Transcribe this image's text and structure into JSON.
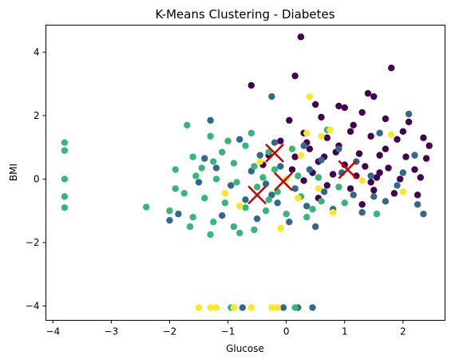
{
  "chart_data": {
    "type": "scatter",
    "title": "K-Means Clustering - Diabetes",
    "xlabel": "Glucose",
    "ylabel": "BMI",
    "xlim": [
      -4.12,
      2.72
    ],
    "ylim": [
      -4.45,
      4.85
    ],
    "xticks": [
      -4,
      -3,
      -2,
      -1,
      0,
      1,
      2
    ],
    "yticks": [
      -4,
      -2,
      0,
      2,
      4
    ],
    "grid": false,
    "legend": "none",
    "series": [
      {
        "color": "#440154",
        "marker": "circle",
        "points": [
          [
            0.25,
            4.48
          ],
          [
            -0.6,
            2.95
          ],
          [
            0.15,
            3.25
          ],
          [
            1.8,
            3.5
          ],
          [
            1.4,
            2.7
          ],
          [
            1.5,
            2.6
          ],
          [
            0.5,
            2.35
          ],
          [
            0.9,
            2.3
          ],
          [
            1.0,
            2.25
          ],
          [
            0.05,
            1.85
          ],
          [
            0.6,
            1.95
          ],
          [
            1.3,
            2.1
          ],
          [
            1.7,
            1.9
          ],
          [
            2.1,
            1.8
          ],
          [
            0.3,
            1.45
          ],
          [
            0.7,
            1.3
          ],
          [
            1.1,
            1.5
          ],
          [
            1.45,
            1.35
          ],
          [
            1.9,
            1.25
          ],
          [
            2.35,
            1.3
          ],
          [
            -0.1,
            1.2
          ],
          [
            0.4,
            0.95
          ],
          [
            0.85,
            0.85
          ],
          [
            1.25,
            0.8
          ],
          [
            1.6,
            0.75
          ],
          [
            2.05,
            0.7
          ],
          [
            2.4,
            0.65
          ],
          [
            -0.3,
            0.75
          ],
          [
            0.15,
            0.7
          ],
          [
            0.55,
            0.55
          ],
          [
            1.0,
            0.45
          ],
          [
            1.35,
            0.4
          ],
          [
            1.75,
            0.35
          ],
          [
            2.2,
            0.3
          ],
          [
            0.1,
            0.3
          ],
          [
            0.45,
            0.2
          ],
          [
            0.8,
            0.15
          ],
          [
            1.2,
            0.1
          ],
          [
            1.55,
            0.05
          ],
          [
            1.95,
            0.0
          ],
          [
            2.3,
            0.05
          ],
          [
            -0.4,
            0.45
          ],
          [
            0.3,
            -0.05
          ],
          [
            0.7,
            -0.2
          ],
          [
            1.1,
            -0.3
          ],
          [
            1.5,
            -0.35
          ],
          [
            1.85,
            -0.45
          ],
          [
            2.25,
            -0.5
          ],
          [
            1.3,
            -0.8
          ],
          [
            0.55,
            -0.6
          ],
          [
            1.7,
            0.95
          ],
          [
            2.0,
            1.5
          ],
          [
            0.9,
            1.05
          ],
          [
            1.15,
            1.7
          ],
          [
            0.35,
            1.15
          ],
          [
            1.6,
            0.2
          ],
          [
            2.45,
            1.05
          ],
          [
            0.65,
            0.7
          ],
          [
            1.45,
            -0.1
          ]
        ]
      },
      {
        "color": "#31688e",
        "marker": "circle",
        "points": [
          [
            -0.25,
            2.6
          ],
          [
            2.1,
            2.05
          ],
          [
            -1.3,
            1.85
          ],
          [
            -0.8,
            1.25
          ],
          [
            -0.2,
            1.15
          ],
          [
            0.3,
            1.05
          ],
          [
            0.9,
            0.95
          ],
          [
            1.6,
            1.45
          ],
          [
            2.2,
            0.75
          ],
          [
            -1.2,
            0.35
          ],
          [
            -0.6,
            0.25
          ],
          [
            -0.1,
            0.4
          ],
          [
            0.4,
            0.3
          ],
          [
            0.95,
            0.2
          ],
          [
            1.45,
            0.1
          ],
          [
            2.0,
            0.2
          ],
          [
            -1.5,
            -0.1
          ],
          [
            -0.95,
            -0.2
          ],
          [
            -0.35,
            -0.15
          ],
          [
            0.15,
            -0.3
          ],
          [
            0.65,
            -0.4
          ],
          [
            1.15,
            -0.5
          ],
          [
            1.7,
            -0.7
          ],
          [
            2.25,
            -0.8
          ],
          [
            2.35,
            -1.1
          ],
          [
            -0.7,
            -0.65
          ],
          [
            -0.15,
            -0.75
          ],
          [
            0.35,
            -0.85
          ],
          [
            0.8,
            -0.95
          ],
          [
            1.3,
            -1.05
          ],
          [
            -2.0,
            -1.3
          ],
          [
            -1.1,
            -1.15
          ],
          [
            -0.5,
            -1.25
          ],
          [
            0.05,
            -1.35
          ],
          [
            0.5,
            -1.5
          ],
          [
            -1.4,
            0.65
          ],
          [
            -0.45,
            0.75
          ],
          [
            1.2,
            0.55
          ],
          [
            1.9,
            -0.2
          ],
          [
            0.2,
            -4.05
          ],
          [
            0.45,
            -4.05
          ],
          [
            -0.05,
            -4.05
          ],
          [
            -0.75,
            -4.05
          ],
          [
            -1.85,
            -1.1
          ],
          [
            1.5,
            -0.55
          ],
          [
            -0.25,
            -0.5
          ],
          [
            0.6,
            0.6
          ]
        ]
      },
      {
        "color": "#35b779",
        "marker": "circle",
        "points": [
          [
            -3.8,
            1.15
          ],
          [
            -3.8,
            0.9
          ],
          [
            -3.8,
            0.0
          ],
          [
            -3.8,
            -0.55
          ],
          [
            -3.8,
            -0.9
          ],
          [
            -2.4,
            -0.88
          ],
          [
            -2.0,
            -1.0
          ],
          [
            -1.7,
            1.7
          ],
          [
            -1.3,
            1.35
          ],
          [
            -1.0,
            1.2
          ],
          [
            -0.7,
            1.05
          ],
          [
            -0.3,
            0.85
          ],
          [
            0.1,
            0.95
          ],
          [
            0.7,
            1.55
          ],
          [
            -1.6,
            0.7
          ],
          [
            -1.25,
            0.55
          ],
          [
            -0.9,
            0.5
          ],
          [
            -0.55,
            0.4
          ],
          [
            -0.2,
            0.3
          ],
          [
            0.2,
            0.1
          ],
          [
            0.55,
            0.05
          ],
          [
            -1.9,
            0.3
          ],
          [
            -1.55,
            0.1
          ],
          [
            -1.2,
            0.0
          ],
          [
            -0.85,
            -0.1
          ],
          [
            -0.5,
            -0.25
          ],
          [
            -0.15,
            -0.4
          ],
          [
            0.25,
            -0.55
          ],
          [
            0.6,
            -0.7
          ],
          [
            1.0,
            -0.75
          ],
          [
            1.55,
            -1.1
          ],
          [
            -1.75,
            -0.45
          ],
          [
            -1.4,
            -0.6
          ],
          [
            -1.05,
            -0.75
          ],
          [
            -0.7,
            -0.9
          ],
          [
            -0.35,
            -1.0
          ],
          [
            0.0,
            -1.1
          ],
          [
            0.35,
            -1.2
          ],
          [
            -1.6,
            -1.2
          ],
          [
            -1.25,
            -1.35
          ],
          [
            -0.9,
            -1.5
          ],
          [
            -0.55,
            -1.6
          ],
          [
            -1.3,
            -1.75
          ],
          [
            -0.8,
            -1.7
          ],
          [
            -1.65,
            -1.5
          ],
          [
            -0.6,
            1.45
          ],
          [
            -1.1,
            0.85
          ],
          [
            -0.4,
            0.05
          ],
          [
            0.9,
            -0.25
          ],
          [
            -0.95,
            -4.05
          ],
          [
            0.15,
            -4.05
          ],
          [
            -1.9,
            -0.3
          ],
          [
            -0.3,
            -0.65
          ],
          [
            -1.45,
            0.35
          ],
          [
            0.45,
            -0.95
          ]
        ]
      },
      {
        "color": "#fde725",
        "marker": "circle",
        "points": [
          [
            0.4,
            2.6
          ],
          [
            0.75,
            1.55
          ],
          [
            0.6,
            1.35
          ],
          [
            0.35,
            1.45
          ],
          [
            1.8,
            1.4
          ],
          [
            -0.45,
            0.55
          ],
          [
            0.25,
            0.75
          ],
          [
            0.0,
            0.0
          ],
          [
            1.3,
            -0.05
          ],
          [
            0.55,
            -0.3
          ],
          [
            -1.05,
            -0.45
          ],
          [
            -0.8,
            -0.85
          ],
          [
            2.0,
            -0.4
          ],
          [
            0.8,
            -1.05
          ],
          [
            -0.1,
            -1.55
          ],
          [
            -1.5,
            -4.05
          ],
          [
            -1.3,
            -4.05
          ],
          [
            -1.2,
            -4.05
          ],
          [
            -0.9,
            -4.05
          ],
          [
            -0.6,
            -4.05
          ],
          [
            -0.25,
            -4.05
          ],
          [
            -0.15,
            -4.05
          ],
          [
            0.2,
            -0.6
          ]
        ]
      }
    ],
    "centroids": {
      "color": "#cc0000",
      "marker": "x",
      "points": [
        [
          -0.2,
          0.82
        ],
        [
          1.05,
          0.3
        ],
        [
          -0.05,
          -0.08
        ],
        [
          -0.5,
          -0.5
        ]
      ]
    }
  }
}
